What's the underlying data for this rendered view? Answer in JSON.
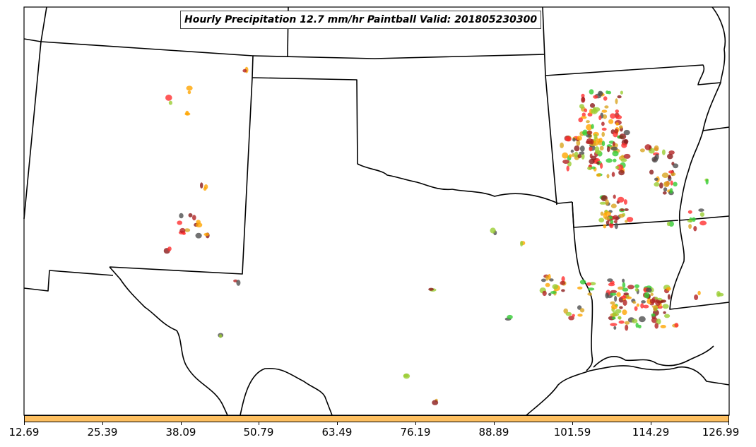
{
  "title": "Hourly Precipitation 12.7 mm/hr Paintball Valid: 201805230300",
  "colorbar": {
    "color": "#FDBF60",
    "tick_labels": [
      "12.69",
      "25.39",
      "38.09",
      "50.79",
      "63.49",
      "76.19",
      "88.89",
      "101.59",
      "114.29",
      "126.99"
    ]
  },
  "palette": {
    "border": "#000000",
    "ensemble_colors": [
      "#FF3030",
      "#8B1A1A",
      "#33CC33",
      "#FFA500",
      "#9ACD32",
      "#4F4F4F",
      "#B22222",
      "#DAA520"
    ]
  }
}
